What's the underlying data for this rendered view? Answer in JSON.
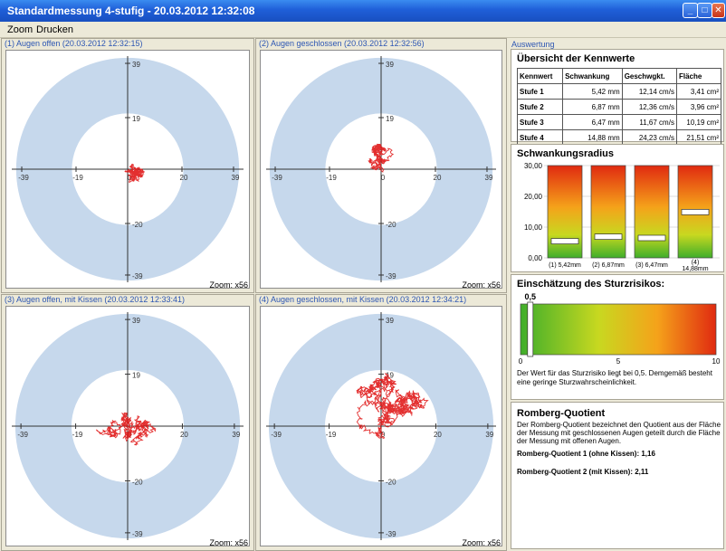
{
  "window": {
    "title": "Standardmessung 4-stufig - 20.03.2012 12:32:08",
    "buttons": {
      "minimize": "_",
      "maximize": "□",
      "close": "✕"
    }
  },
  "menu": {
    "items": [
      "Zoom",
      "Drucken"
    ]
  },
  "plots": [
    {
      "header": "(1) Augen offen (20.03.2012 12:32:15)",
      "zoom": "Zoom: x56"
    },
    {
      "header": "(2) Augen geschlossen (20.03.2012 12:32:56)",
      "zoom": "Zoom: x56"
    },
    {
      "header": "(3) Augen offen, mit Kissen (20.03.2012 12:33:41)",
      "zoom": "Zoom: x56"
    },
    {
      "header": "(4) Augen geschlossen, mit Kissen (20.03.2012 12:34:21)",
      "zoom": "Zoom: x56"
    }
  ],
  "axis_ticks": {
    "neg_outer": "-39",
    "neg_inner": "-19",
    "zero": "0",
    "pos_inner": "20",
    "pos_outer": "39",
    "y_top": "39",
    "y_mid": "19",
    "y_neg_mid": "-20",
    "y_neg": "-39"
  },
  "auswertung": {
    "header": "Auswertung",
    "overview": {
      "title": "Übersicht der Kennwerte",
      "columns": [
        "Kennwert",
        "Schwankung",
        "Geschwgkt.",
        "Fläche"
      ],
      "rows": [
        [
          "Stufe 1",
          "5,42 mm",
          "12,14 cm/s",
          "3,41 cm²"
        ],
        [
          "Stufe 2",
          "6,87 mm",
          "12,36 cm/s",
          "3,96 cm²"
        ],
        [
          "Stufe 3",
          "6,47 mm",
          "11,67 cm/s",
          "10,19 cm²"
        ],
        [
          "Stufe 4",
          "14,88 mm",
          "24,23 cm/s",
          "21,51 cm²"
        ]
      ]
    },
    "radius": {
      "title": "Schwankungsradius",
      "y_ticks": [
        "30,00",
        "20,00",
        "10,00",
        "0,00"
      ],
      "bars": [
        {
          "label": "(1) 5,42mm",
          "value": 5.42
        },
        {
          "label": "(2) 6,87mm",
          "value": 6.87
        },
        {
          "label": "(3) 6,47mm",
          "value": 6.47
        },
        {
          "label_top": "(4)",
          "label": "14,88mm",
          "value": 14.88
        }
      ],
      "max": 30
    },
    "risk": {
      "title": "Einschätzung des Sturzrisikos:",
      "value_label": "0,5",
      "value": 0.5,
      "max": 10,
      "ticks": [
        "0",
        "5",
        "10"
      ],
      "text": "Der Wert für das Sturzrisiko liegt bei 0,5. Demgemäß besteht eine geringe Sturzwahrscheinlichkeit."
    },
    "romberg": {
      "title": "Romberg-Quotient",
      "text": "Der Romberg-Quotient bezeichnet den Quotient aus der Fläche der Messung mit geschlossenen Augen geteilt durch die Fläche der Messung mit offenen Augen.",
      "q1": "Romberg-Quotient 1 (ohne Kissen): 1,16",
      "q2": "Romberg-Quotient 2 (mit Kissen): 2,11"
    }
  }
}
